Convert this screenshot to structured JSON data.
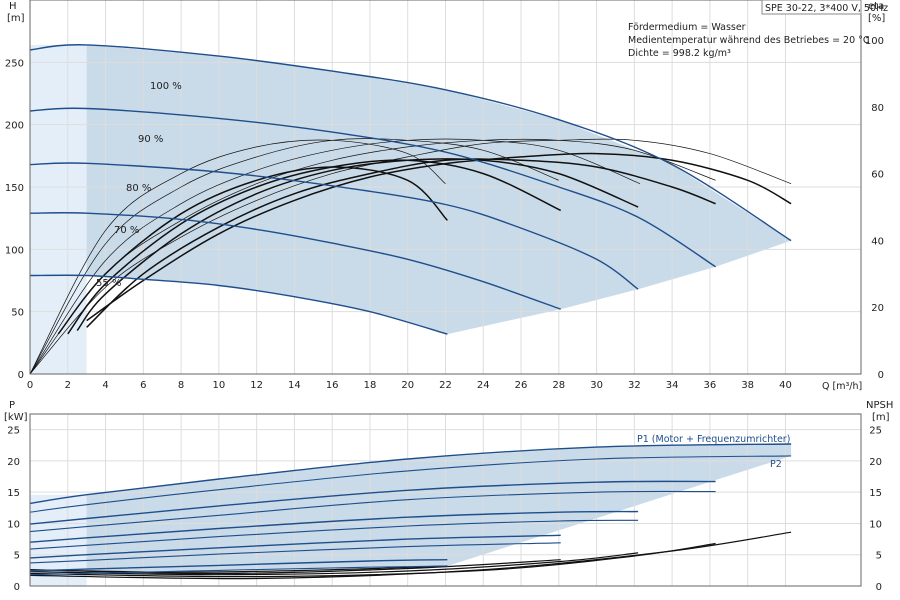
{
  "chart_data": [
    {
      "type": "line",
      "header_box": "SPE 30-22, 3*400 V, 50Hz",
      "notes": [
        "Fördermedium = Wasser",
        "Medientemperatur während des Betriebes = 20 °C",
        "Dichte = 998.2 kg/m³"
      ],
      "left_axis": {
        "unit_top": "H",
        "unit_bottom": "[m]",
        "ylim": [
          0,
          300
        ],
        "ticks": [
          0,
          50,
          100,
          150,
          200,
          250
        ]
      },
      "right_axis": {
        "unit_top": "eta",
        "unit_bottom": "[%]",
        "ylim": [
          0,
          112
        ],
        "ticks": [
          0,
          20,
          40,
          60,
          80,
          100
        ]
      },
      "x_axis": {
        "label": "Q [m³/h]",
        "xlim": [
          0,
          44
        ],
        "ticks": [
          0,
          2,
          4,
          6,
          8,
          10,
          12,
          14,
          16,
          18,
          20,
          22,
          24,
          26,
          28,
          30,
          32,
          34,
          36,
          38,
          40
        ]
      },
      "grid": true,
      "speed_labels": [
        "100 %",
        "90 %",
        "80 %",
        "70 %",
        "55 %"
      ],
      "colors": {
        "head": "#1f4e8c",
        "eff": "#111111",
        "band": "#c9dae8",
        "band_light": "#e4eef8"
      },
      "head_curves": [
        {
          "q": [
            0,
            3,
            10,
            16,
            22,
            28,
            34,
            40.3
          ],
          "h": [
            260,
            264,
            255,
            243,
            228,
            204,
            168,
            107
          ]
        },
        {
          "q": [
            0,
            3,
            10,
            16,
            22,
            28,
            32.3,
            36.3
          ],
          "h": [
            211,
            213,
            205,
            194,
            178,
            150,
            125,
            86
          ]
        },
        {
          "q": [
            0,
            3,
            10,
            16,
            22,
            26,
            30,
            32.2
          ],
          "h": [
            168,
            169,
            162,
            151,
            136,
            117,
            92,
            68
          ]
        },
        {
          "q": [
            0,
            3,
            8,
            12,
            16,
            20,
            24,
            28.1
          ],
          "h": [
            129,
            129,
            124,
            116,
            105,
            92,
            74,
            52
          ]
        },
        {
          "q": [
            0,
            3,
            6,
            10,
            14,
            18,
            22.1
          ],
          "h": [
            79,
            79,
            76,
            71,
            62,
            50,
            32
          ]
        }
      ],
      "eff_thin_curves": [
        {
          "q": [
            0,
            4,
            8,
            12,
            16,
            20,
            22
          ],
          "eta": [
            0,
            43,
            60,
            68,
            70,
            66,
            57
          ]
        },
        {
          "q": [
            0,
            4,
            8,
            12,
            16,
            20,
            24,
            28
          ],
          "eta": [
            0,
            39,
            56,
            65,
            70,
            70,
            67,
            58
          ]
        },
        {
          "q": [
            0,
            4,
            8,
            12,
            16,
            20,
            24,
            28,
            32.3
          ],
          "eta": [
            0,
            34,
            51,
            61,
            67,
            70,
            70,
            67,
            57
          ]
        },
        {
          "q": [
            0,
            4,
            8,
            12,
            16,
            20,
            24,
            28,
            32,
            36.3
          ],
          "eta": [
            0,
            30,
            46,
            57,
            64,
            68,
            70,
            70,
            67,
            58
          ]
        },
        {
          "q": [
            0,
            4,
            8,
            12,
            16,
            20,
            24,
            28,
            32,
            36,
            40.3
          ],
          "eta": [
            0,
            26,
            41,
            52,
            60,
            65,
            69,
            70,
            70,
            66,
            57
          ]
        }
      ],
      "eff_bold_curves": [
        {
          "q": [
            1.5,
            4,
            8,
            12,
            16,
            20,
            22.1
          ],
          "eta": [
            12,
            30,
            48,
            58,
            62,
            58,
            46
          ]
        },
        {
          "q": [
            2,
            4,
            8,
            12,
            16,
            20,
            24,
            28.1
          ],
          "eta": [
            12,
            27,
            45,
            56,
            62,
            64,
            60,
            49
          ]
        },
        {
          "q": [
            2.5,
            4,
            8,
            12,
            16,
            20,
            24,
            28,
            32.2
          ],
          "eta": [
            13,
            24,
            42,
            54,
            61,
            64,
            64,
            60,
            50
          ]
        },
        {
          "q": [
            3,
            6,
            10,
            14,
            18,
            22,
            26,
            30,
            34,
            36.3
          ],
          "eta": [
            14,
            30,
            44,
            54,
            60,
            64,
            64,
            62,
            56,
            51
          ]
        },
        {
          "q": [
            3,
            6,
            10,
            14,
            18,
            22,
            26,
            30,
            34,
            38,
            40.3
          ],
          "eta": [
            16,
            28,
            42,
            52,
            59,
            63,
            65,
            66,
            64,
            58,
            51
          ]
        }
      ]
    },
    {
      "type": "line",
      "left_axis": {
        "unit_top": "P",
        "unit_bottom": "[kW]",
        "ylim": [
          0,
          27.5
        ],
        "ticks": [
          0,
          5,
          10,
          15,
          20,
          25
        ]
      },
      "right_axis": {
        "unit_top": "NPSH",
        "unit_bottom": "[m]",
        "ylim": [
          0,
          27.5
        ],
        "ticks": [
          0,
          5,
          10,
          15,
          20,
          25
        ]
      },
      "x_axis": {
        "xlim": [
          0,
          44
        ]
      },
      "grid": true,
      "series_labels": [
        "P1 (Motor + Frequenzumrichter)",
        "P2"
      ],
      "p1_curves": [
        {
          "q": [
            0,
            3,
            10,
            20,
            30,
            40.3
          ],
          "p": [
            13.2,
            14.6,
            17.1,
            20.3,
            22.2,
            22.7
          ]
        },
        {
          "q": [
            0,
            3,
            10,
            20,
            30,
            36.3
          ],
          "p": [
            9.9,
            10.8,
            12.8,
            15.3,
            16.6,
            16.7
          ]
        },
        {
          "q": [
            0,
            3,
            10,
            20,
            28,
            32.2
          ],
          "p": [
            7.0,
            7.7,
            9.2,
            11.0,
            11.8,
            11.9
          ]
        },
        {
          "q": [
            0,
            3,
            10,
            20,
            28.1
          ],
          "p": [
            4.5,
            5.0,
            6.1,
            7.5,
            8.1
          ]
        },
        {
          "q": [
            0,
            3,
            10,
            18,
            22.1
          ],
          "p": [
            2.4,
            2.7,
            3.3,
            4.0,
            4.2
          ]
        }
      ],
      "p2_curves": [
        {
          "q": [
            0,
            3,
            10,
            20,
            30,
            40.3
          ],
          "p": [
            11.8,
            13.0,
            15.4,
            18.4,
            20.3,
            20.8
          ]
        },
        {
          "q": [
            0,
            3,
            10,
            20,
            30,
            36.3
          ],
          "p": [
            8.7,
            9.5,
            11.3,
            13.8,
            15.0,
            15.1
          ]
        },
        {
          "q": [
            0,
            3,
            10,
            20,
            28,
            32.2
          ],
          "p": [
            5.9,
            6.5,
            7.9,
            9.6,
            10.4,
            10.5
          ]
        },
        {
          "q": [
            0,
            3,
            10,
            20,
            28.1
          ],
          "p": [
            3.7,
            4.1,
            5.1,
            6.3,
            6.9
          ]
        },
        {
          "q": [
            0,
            3,
            10,
            18,
            22.1
          ],
          "p": [
            1.8,
            2.0,
            2.5,
            3.0,
            3.2
          ]
        }
      ],
      "npsh_curves": [
        {
          "q": [
            0,
            8,
            16,
            22.1
          ],
          "n": [
            2.6,
            2.2,
            2.6,
            3.2
          ]
        },
        {
          "q": [
            0,
            10,
            20,
            28.1
          ],
          "n": [
            2.6,
            2.0,
            2.8,
            4.2
          ]
        },
        {
          "q": [
            0,
            10,
            20,
            28,
            32.2
          ],
          "n": [
            2.3,
            1.8,
            2.4,
            3.9,
            5.3
          ]
        },
        {
          "q": [
            0,
            12,
            24,
            32,
            36.3
          ],
          "n": [
            2.0,
            1.5,
            2.5,
            4.8,
            6.8
          ]
        },
        {
          "q": [
            0,
            12,
            24,
            34,
            40.3
          ],
          "n": [
            1.7,
            1.2,
            2.6,
            5.6,
            8.6
          ]
        }
      ]
    }
  ]
}
